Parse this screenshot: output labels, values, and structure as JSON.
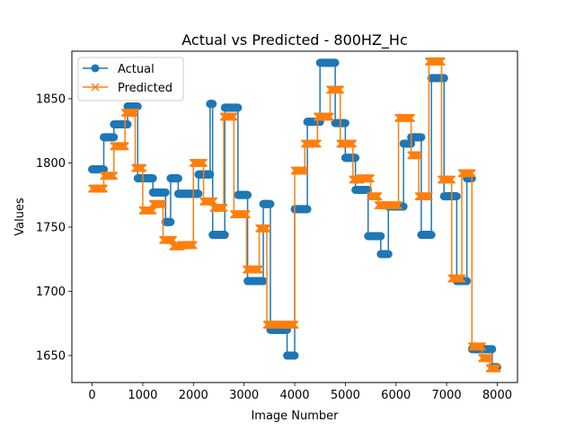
{
  "chart_data": {
    "type": "line",
    "title": "Actual vs Predicted - 800HZ_Hc",
    "xlabel": "Image Number",
    "ylabel": "Values",
    "xlim": [
      -400,
      8400
    ],
    "ylim": [
      1629,
      1887
    ],
    "xticks": [
      0,
      1000,
      2000,
      3000,
      4000,
      5000,
      6000,
      7000,
      8000
    ],
    "yticks": [
      1650,
      1700,
      1750,
      1800,
      1850
    ],
    "grid": false,
    "legend": "top-left",
    "series": [
      {
        "name": "Actual",
        "color": "#1f77b4",
        "marker": "circle",
        "segments": [
          [
            0,
            230,
            1795
          ],
          [
            230,
            430,
            1820
          ],
          [
            430,
            700,
            1830
          ],
          [
            700,
            900,
            1844
          ],
          [
            900,
            1200,
            1788
          ],
          [
            1200,
            1450,
            1777
          ],
          [
            1450,
            1550,
            1754
          ],
          [
            1550,
            1700,
            1788
          ],
          [
            1700,
            2100,
            1776
          ],
          [
            2100,
            2330,
            1791
          ],
          [
            2330,
            2380,
            1846
          ],
          [
            2380,
            2620,
            1744
          ],
          [
            2620,
            2880,
            1843
          ],
          [
            2880,
            3070,
            1775
          ],
          [
            3070,
            3380,
            1708
          ],
          [
            3380,
            3520,
            1768
          ],
          [
            3520,
            3850,
            1670
          ],
          [
            3850,
            4000,
            1650
          ],
          [
            4000,
            4250,
            1764
          ],
          [
            4250,
            4500,
            1832
          ],
          [
            4500,
            4800,
            1878
          ],
          [
            4800,
            5000,
            1831
          ],
          [
            5000,
            5200,
            1804
          ],
          [
            5200,
            5450,
            1779
          ],
          [
            5450,
            5700,
            1743
          ],
          [
            5700,
            5850,
            1729
          ],
          [
            5850,
            6150,
            1766
          ],
          [
            6150,
            6300,
            1815
          ],
          [
            6300,
            6500,
            1820
          ],
          [
            6500,
            6700,
            1744
          ],
          [
            6700,
            6950,
            1866
          ],
          [
            6950,
            7200,
            1774
          ],
          [
            7200,
            7400,
            1708
          ],
          [
            7400,
            7500,
            1788
          ],
          [
            7500,
            7700,
            1655
          ],
          [
            7700,
            7900,
            1655
          ],
          [
            7900,
            8000,
            1641
          ]
        ]
      },
      {
        "name": "Predicted",
        "color": "#ff7f0e",
        "marker": "x",
        "segments": [
          [
            0,
            230,
            1780
          ],
          [
            230,
            430,
            1790
          ],
          [
            430,
            650,
            1813
          ],
          [
            650,
            850,
            1839
          ],
          [
            850,
            1000,
            1796
          ],
          [
            1000,
            1200,
            1763
          ],
          [
            1200,
            1400,
            1768
          ],
          [
            1400,
            1600,
            1740
          ],
          [
            1600,
            1750,
            1735
          ],
          [
            1750,
            2000,
            1736
          ],
          [
            2000,
            2200,
            1800
          ],
          [
            2200,
            2400,
            1770
          ],
          [
            2400,
            2600,
            1765
          ],
          [
            2600,
            2800,
            1836
          ],
          [
            2800,
            3050,
            1760
          ],
          [
            3050,
            3300,
            1717
          ],
          [
            3300,
            3450,
            1749
          ],
          [
            3450,
            3700,
            1674
          ],
          [
            3700,
            4000,
            1674
          ],
          [
            4000,
            4200,
            1794
          ],
          [
            4200,
            4450,
            1815
          ],
          [
            4450,
            4700,
            1836
          ],
          [
            4700,
            4900,
            1857
          ],
          [
            4900,
            5150,
            1815
          ],
          [
            5150,
            5300,
            1787
          ],
          [
            5300,
            5500,
            1788
          ],
          [
            5500,
            5650,
            1774
          ],
          [
            5650,
            5800,
            1767
          ],
          [
            5800,
            6050,
            1767
          ],
          [
            6050,
            6300,
            1835
          ],
          [
            6300,
            6450,
            1806
          ],
          [
            6450,
            6650,
            1774
          ],
          [
            6650,
            6900,
            1879
          ],
          [
            6900,
            7100,
            1787
          ],
          [
            7100,
            7300,
            1710
          ],
          [
            7300,
            7500,
            1792
          ],
          [
            7500,
            7700,
            1657
          ],
          [
            7700,
            7850,
            1648
          ],
          [
            7850,
            8000,
            1640
          ]
        ]
      }
    ]
  }
}
